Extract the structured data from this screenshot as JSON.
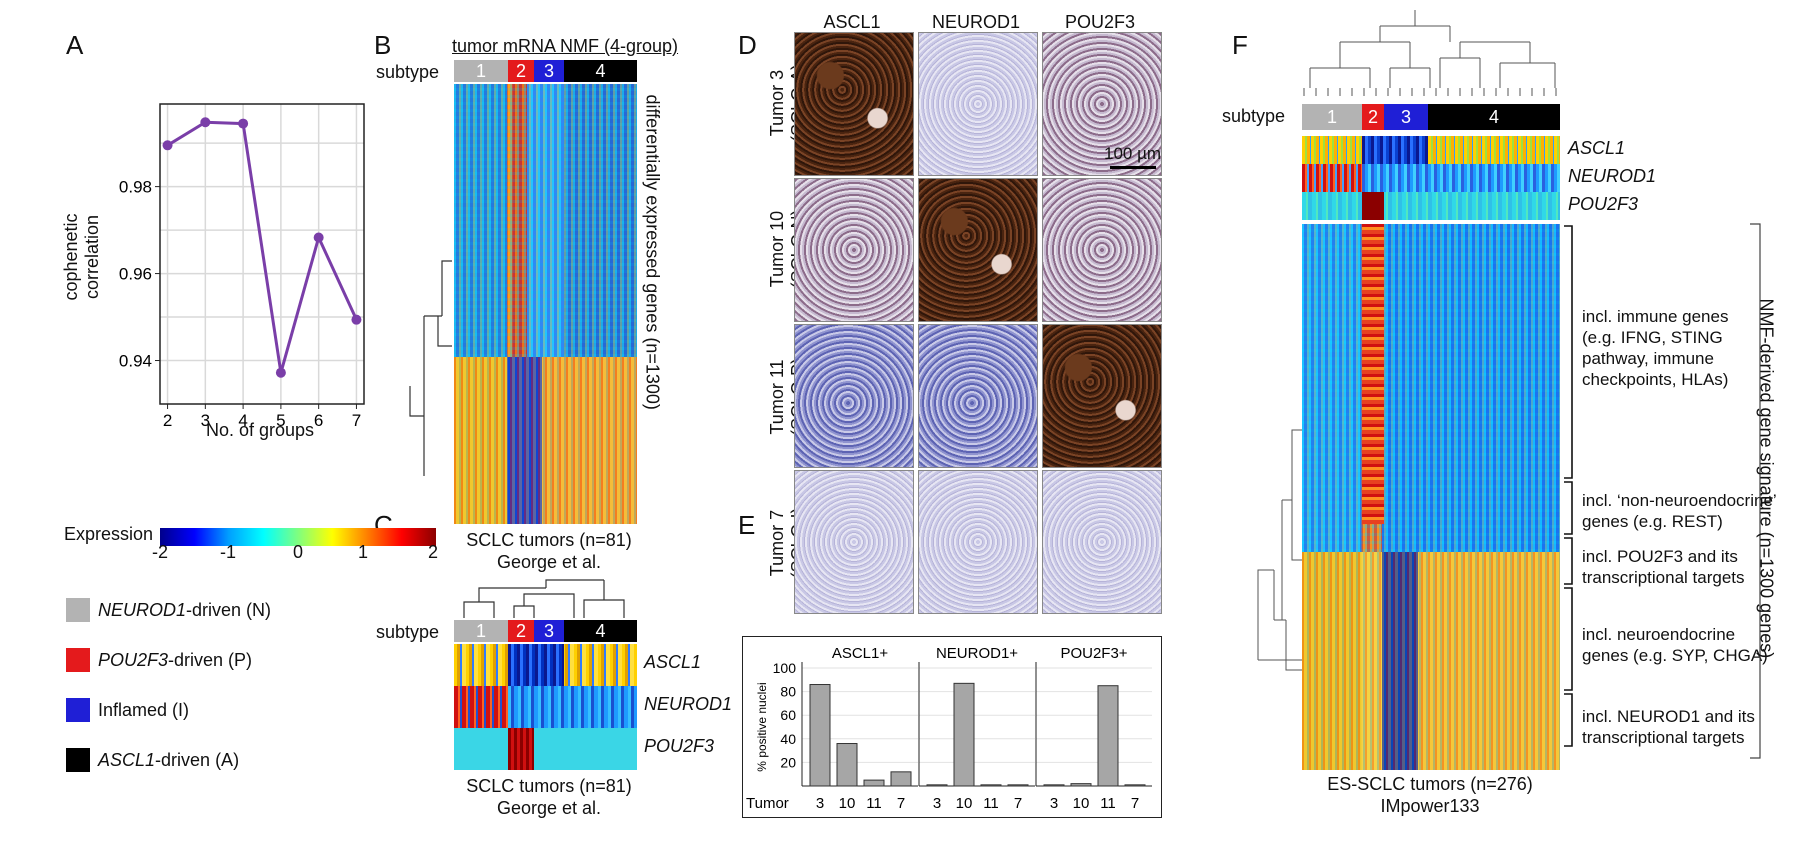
{
  "panels": {
    "A": "A",
    "B": "B",
    "C": "C",
    "D": "D",
    "E": "E",
    "F": "F"
  },
  "panelA": {
    "ylabel_line1": "cophenetic",
    "ylabel_line2": "correlation",
    "xlabel": "No. of groups",
    "yticks": [
      "0.94",
      "0.96",
      "0.98"
    ],
    "xticks": [
      "2",
      "3",
      "4",
      "5",
      "6",
      "7"
    ]
  },
  "chart_data": {
    "type": "line",
    "x": [
      2,
      3,
      4,
      5,
      6,
      7
    ],
    "values": [
      0.9895,
      0.9948,
      0.9945,
      0.9372,
      0.9683,
      0.9494
    ],
    "xlabel": "No. of groups",
    "ylabel": "cophenetic correlation",
    "ylim": [
      0.93,
      0.999
    ],
    "xlim": [
      1.8,
      7.2
    ],
    "grid": true,
    "color": "#7a3ea8"
  },
  "colors": {
    "gray": "#b3b3b3",
    "red": "#e41a1c",
    "blue": "#1f1fd6",
    "black": "#000000"
  },
  "expression_legend": {
    "label": "Expression",
    "ticks": [
      "-2",
      "-1",
      "0",
      "1",
      "2"
    ]
  },
  "subtype_legend": [
    {
      "italic": "NEUROD1",
      "rest": "-driven (N)",
      "color": "#b3b3b3"
    },
    {
      "italic": "POU2F3",
      "rest": "-driven (P)",
      "color": "#e41a1c"
    },
    {
      "italic": "",
      "rest": "Inflamed (I)",
      "color": "#1f1fd6"
    },
    {
      "italic": "ASCL1",
      "rest": "-driven (A)",
      "color": "#000000"
    }
  ],
  "panelB": {
    "title": "tumor mRNA NMF (4-group)",
    "subtype_label": "subtype",
    "groups": [
      "1",
      "2",
      "3",
      "4"
    ],
    "side_label": "differentially expressed genes (n=1300)",
    "caption1": "SCLC tumors (n=81)",
    "caption2": "George et al."
  },
  "panelC": {
    "subtype_label": "subtype",
    "groups": [
      "1",
      "2",
      "3",
      "4"
    ],
    "genes": [
      "ASCL1",
      "NEUROD1",
      "POU2F3"
    ],
    "caption1": "SCLC tumors (n=81)",
    "caption2": "George et al."
  },
  "panelD": {
    "cols": [
      "ASCL1",
      "NEUROD1",
      "POU2F3"
    ],
    "rows": [
      {
        "l1": "Tumor 3",
        "l2": "(SCLC-A)"
      },
      {
        "l1": "Tumor 10",
        "l2": "(SCLC-N)"
      },
      {
        "l1": "Tumor 11",
        "l2": "(SCLC-P)"
      },
      {
        "l1": "Tumor 7",
        "l2": "(SCLC-I)"
      }
    ],
    "scale": "100 µm"
  },
  "panelE": {
    "ylabel": "% positive nuclei",
    "yticks": [
      "20",
      "40",
      "60",
      "80",
      "100"
    ],
    "tumor_label": "Tumor",
    "groups": [
      {
        "title": "ASCL1+",
        "tumors": [
          "3",
          "10",
          "11",
          "7"
        ],
        "values": [
          86,
          36,
          5,
          12
        ]
      },
      {
        "title": "NEUROD1+",
        "tumors": [
          "3",
          "10",
          "11",
          "7"
        ],
        "values": [
          1,
          87,
          1,
          1
        ]
      },
      {
        "title": "POU2F3+",
        "tumors": [
          "3",
          "10",
          "11",
          "7"
        ],
        "values": [
          1,
          2,
          85,
          1
        ]
      }
    ]
  },
  "panelF": {
    "subtype_label": "subtype",
    "groups": [
      "1",
      "2",
      "3",
      "4"
    ],
    "genes": [
      "ASCL1",
      "NEUROD1",
      "POU2F3"
    ],
    "annotations": [
      {
        "lines": [
          "incl. immune genes",
          "(e.g. IFNG, STING",
          "pathway, immune",
          "checkpoints, HLAs)"
        ]
      },
      {
        "lines": [
          "incl. ‘non-neuroendocrine’",
          "genes (e.g. REST)"
        ]
      },
      {
        "lines": [
          "incl. POU2F3 and its",
          "transcriptional targets"
        ]
      },
      {
        "lines": [
          "incl. neuroendocrine",
          "genes (e.g. SYP, CHGA)"
        ]
      },
      {
        "lines": [
          "incl. NEUROD1 and its",
          "transcriptional targets"
        ]
      }
    ],
    "side_label": "NMF-derived gene signature (n=1300 genes)",
    "caption1": "ES-SCLC tumors (n=276)",
    "caption2": "IMpower133"
  }
}
